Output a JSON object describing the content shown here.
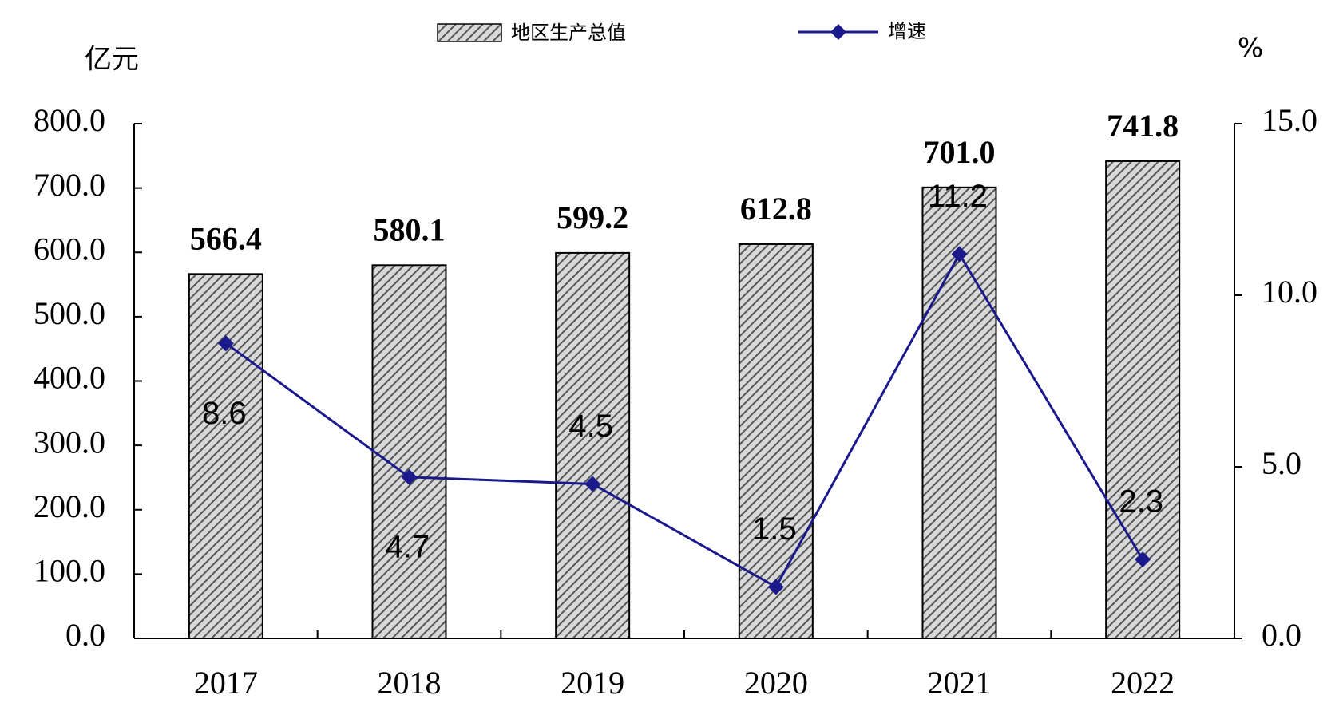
{
  "chart_data": {
    "type": "bar",
    "categories": [
      "2017",
      "2018",
      "2019",
      "2020",
      "2021",
      "2022"
    ],
    "y_label": "亿元",
    "y2_label": "%",
    "series": [
      {
        "name": "地区生产总值",
        "type": "bar",
        "color": "#777777",
        "values": [
          566.4,
          580.1,
          599.2,
          612.8,
          701.0,
          741.8
        ],
        "value_labels": [
          "566.4",
          "580.1",
          "599.2",
          "612.8",
          "701.0",
          "741.8"
        ]
      },
      {
        "name": "增速",
        "type": "line",
        "axis": "y2",
        "color": "#1a1a8c",
        "values": [
          8.6,
          4.7,
          4.5,
          1.5,
          11.2,
          2.3
        ]
      }
    ],
    "ylim": [
      0,
      800
    ],
    "yticks": [
      {
        "value": 0,
        "label": "0.0"
      },
      {
        "value": 100,
        "label": "100.0"
      },
      {
        "value": 200,
        "label": "200.0"
      },
      {
        "value": 300,
        "label": "300.0"
      },
      {
        "value": 400,
        "label": "400.0"
      },
      {
        "value": 500,
        "label": "500.0"
      },
      {
        "value": 600,
        "label": "600.0"
      },
      {
        "value": 700,
        "label": "700.0"
      },
      {
        "value": 800,
        "label": "800.0"
      }
    ],
    "y2lim": [
      0,
      15
    ],
    "y2ticks": [
      {
        "value": 0,
        "label": "0.0"
      },
      {
        "value": 5,
        "label": "5.0"
      },
      {
        "value": 10,
        "label": "10.0"
      },
      {
        "value": 15,
        "label": "15.0"
      }
    ]
  }
}
